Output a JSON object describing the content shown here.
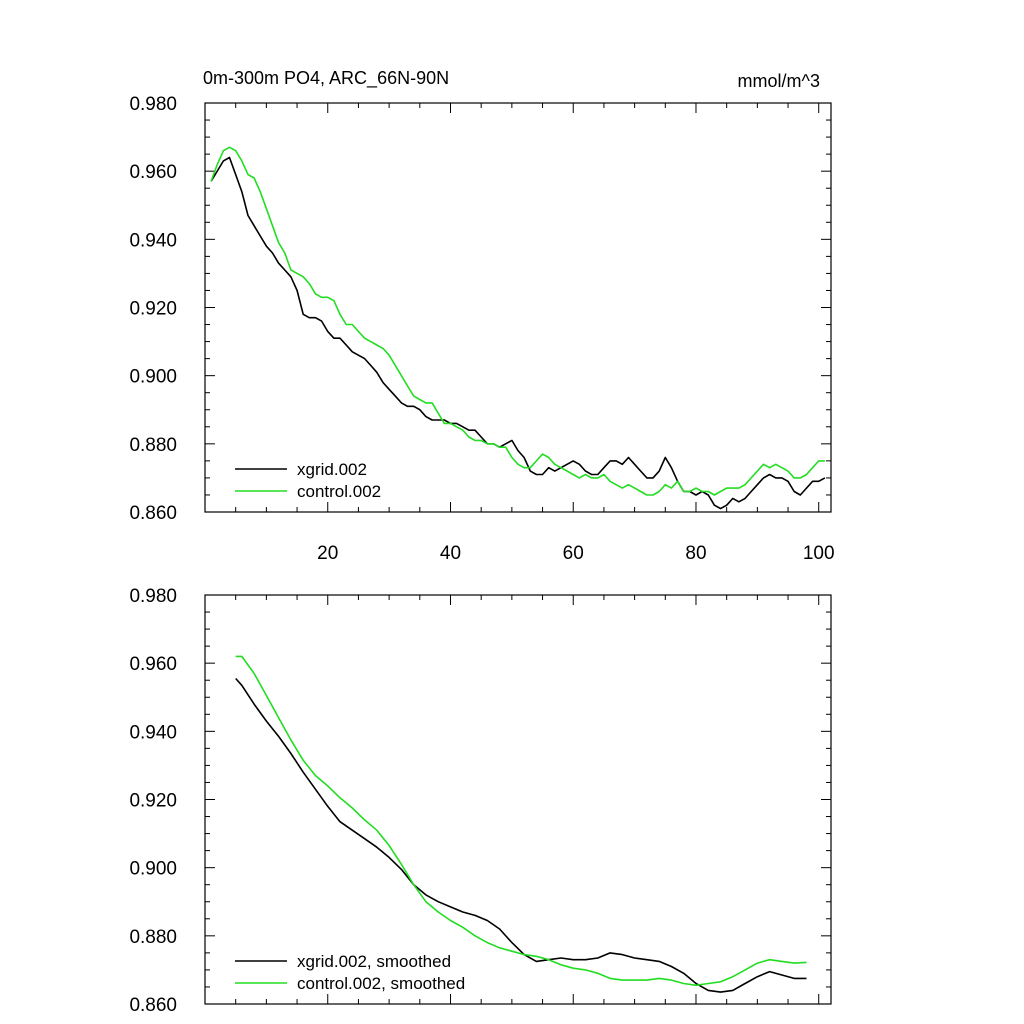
{
  "colors": {
    "xgrid": "#000000",
    "control": "#22dd22"
  },
  "chart_data": [
    {
      "type": "line",
      "title_left": "0m-300m PO4, ARC_66N-90N",
      "title_right": "mmol/m^3",
      "xlim": [
        0,
        102
      ],
      "ylim": [
        0.86,
        0.98
      ],
      "yticks": [
        0.86,
        0.88,
        0.9,
        0.92,
        0.94,
        0.96,
        0.98
      ],
      "ytick_labels": [
        "0.860",
        "0.880",
        "0.900",
        "0.920",
        "0.940",
        "0.960",
        "0.980"
      ],
      "xticks": [
        20,
        40,
        60,
        80,
        100
      ],
      "xtick_labels": [
        "20",
        "40",
        "60",
        "80",
        "100"
      ],
      "legend_position": "bottom-left",
      "series": [
        {
          "name": "xgrid.002",
          "color_key": "xgrid",
          "x": [
            1,
            3,
            4,
            5,
            6,
            7,
            8,
            9,
            10,
            11,
            12,
            13,
            14,
            15,
            16,
            17,
            18,
            19,
            20,
            21,
            22,
            23,
            24,
            25,
            26,
            27,
            28,
            29,
            30,
            31,
            32,
            33,
            34,
            35,
            36,
            37,
            38,
            39,
            40,
            41,
            42,
            43,
            44,
            45,
            46,
            47,
            48,
            49,
            50,
            51,
            52,
            53,
            54,
            55,
            56,
            57,
            58,
            59,
            60,
            61,
            62,
            63,
            64,
            65,
            66,
            67,
            68,
            69,
            70,
            71,
            72,
            73,
            74,
            75,
            76,
            77,
            78,
            79,
            80,
            81,
            82,
            83,
            84,
            85,
            86,
            87,
            88,
            89,
            90,
            91,
            92,
            93,
            94,
            95,
            96,
            97,
            98,
            99,
            100,
            101
          ],
          "y": [
            0.957,
            0.963,
            0.964,
            0.959,
            0.954,
            0.947,
            0.944,
            0.941,
            0.938,
            0.936,
            0.933,
            0.931,
            0.929,
            0.925,
            0.918,
            0.917,
            0.917,
            0.916,
            0.913,
            0.911,
            0.911,
            0.909,
            0.907,
            0.906,
            0.905,
            0.903,
            0.901,
            0.898,
            0.896,
            0.894,
            0.892,
            0.891,
            0.891,
            0.89,
            0.888,
            0.887,
            0.887,
            0.887,
            0.886,
            0.886,
            0.885,
            0.884,
            0.884,
            0.882,
            0.88,
            0.88,
            0.879,
            0.88,
            0.881,
            0.878,
            0.876,
            0.872,
            0.871,
            0.871,
            0.873,
            0.872,
            0.873,
            0.874,
            0.875,
            0.874,
            0.872,
            0.871,
            0.871,
            0.873,
            0.875,
            0.875,
            0.874,
            0.876,
            0.874,
            0.872,
            0.87,
            0.87,
            0.872,
            0.876,
            0.873,
            0.869,
            0.866,
            0.866,
            0.865,
            0.866,
            0.865,
            0.862,
            0.861,
            0.862,
            0.864,
            0.863,
            0.864,
            0.866,
            0.868,
            0.87,
            0.871,
            0.87,
            0.87,
            0.869,
            0.866,
            0.865,
            0.867,
            0.869,
            0.869,
            0.87
          ]
        },
        {
          "name": "control.002",
          "color_key": "control",
          "x": [
            1,
            2,
            3,
            4,
            5,
            6,
            7,
            8,
            9,
            10,
            11,
            12,
            13,
            14,
            15,
            16,
            17,
            18,
            19,
            20,
            21,
            22,
            23,
            24,
            25,
            26,
            27,
            28,
            29,
            30,
            31,
            32,
            33,
            34,
            35,
            36,
            37,
            38,
            39,
            40,
            41,
            42,
            43,
            44,
            45,
            46,
            47,
            48,
            49,
            50,
            51,
            52,
            53,
            54,
            55,
            56,
            57,
            58,
            59,
            60,
            61,
            62,
            63,
            64,
            65,
            66,
            67,
            68,
            69,
            70,
            71,
            72,
            73,
            74,
            75,
            76,
            77,
            78,
            79,
            80,
            81,
            82,
            83,
            84,
            85,
            86,
            87,
            88,
            89,
            90,
            91,
            92,
            93,
            94,
            95,
            96,
            97,
            98,
            99,
            100,
            101
          ],
          "y": [
            0.957,
            0.962,
            0.966,
            0.967,
            0.966,
            0.963,
            0.959,
            0.958,
            0.954,
            0.949,
            0.944,
            0.939,
            0.936,
            0.931,
            0.93,
            0.929,
            0.927,
            0.924,
            0.923,
            0.923,
            0.922,
            0.918,
            0.915,
            0.915,
            0.913,
            0.911,
            0.91,
            0.909,
            0.908,
            0.906,
            0.903,
            0.9,
            0.897,
            0.894,
            0.893,
            0.892,
            0.892,
            0.889,
            0.886,
            0.886,
            0.885,
            0.884,
            0.882,
            0.881,
            0.881,
            0.88,
            0.88,
            0.879,
            0.879,
            0.876,
            0.874,
            0.873,
            0.873,
            0.875,
            0.877,
            0.876,
            0.874,
            0.873,
            0.872,
            0.871,
            0.87,
            0.871,
            0.87,
            0.87,
            0.871,
            0.869,
            0.868,
            0.867,
            0.868,
            0.867,
            0.866,
            0.865,
            0.865,
            0.866,
            0.868,
            0.867,
            0.869,
            0.866,
            0.866,
            0.867,
            0.866,
            0.866,
            0.865,
            0.866,
            0.867,
            0.867,
            0.867,
            0.868,
            0.87,
            0.872,
            0.874,
            0.873,
            0.874,
            0.873,
            0.872,
            0.87,
            0.87,
            0.871,
            0.873,
            0.875,
            0.875
          ]
        }
      ]
    },
    {
      "type": "line",
      "xlim": [
        0,
        102
      ],
      "ylim": [
        0.86,
        0.98
      ],
      "yticks": [
        0.86,
        0.88,
        0.9,
        0.92,
        0.94,
        0.96,
        0.98
      ],
      "ytick_labels": [
        "0.860",
        "0.880",
        "0.900",
        "0.920",
        "0.940",
        "0.960",
        "0.980"
      ],
      "xticks": [
        20,
        40,
        60,
        80,
        100
      ],
      "legend_position": "bottom-left",
      "series": [
        {
          "name": "xgrid.002, smoothed",
          "color_key": "xgrid",
          "x": [
            5,
            6,
            8,
            10,
            12,
            14,
            16,
            18,
            20,
            22,
            24,
            26,
            28,
            30,
            32,
            34,
            36,
            38,
            40,
            42,
            44,
            46,
            48,
            50,
            52,
            54,
            56,
            58,
            60,
            62,
            64,
            66,
            68,
            70,
            72,
            74,
            76,
            78,
            80,
            82,
            84,
            86,
            88,
            90,
            92,
            94,
            96,
            98
          ],
          "y": [
            0.9555,
            0.9535,
            0.948,
            0.943,
            0.9385,
            0.9335,
            0.928,
            0.923,
            0.918,
            0.9135,
            0.911,
            0.9085,
            0.906,
            0.903,
            0.8995,
            0.895,
            0.892,
            0.89,
            0.8885,
            0.887,
            0.886,
            0.8845,
            0.882,
            0.878,
            0.8745,
            0.8725,
            0.873,
            0.8735,
            0.873,
            0.873,
            0.8735,
            0.875,
            0.8745,
            0.8735,
            0.873,
            0.8725,
            0.871,
            0.869,
            0.866,
            0.864,
            0.8635,
            0.864,
            0.866,
            0.868,
            0.8695,
            0.8685,
            0.8675,
            0.8675
          ]
        },
        {
          "name": "control.002, smoothed",
          "color_key": "control",
          "x": [
            5,
            6,
            8,
            10,
            12,
            14,
            16,
            18,
            20,
            22,
            24,
            26,
            28,
            30,
            32,
            34,
            36,
            38,
            40,
            42,
            44,
            46,
            48,
            50,
            52,
            54,
            56,
            58,
            60,
            62,
            64,
            66,
            68,
            70,
            72,
            74,
            76,
            78,
            80,
            82,
            84,
            86,
            88,
            90,
            92,
            94,
            96,
            98
          ],
          "y": [
            0.962,
            0.962,
            0.957,
            0.9505,
            0.944,
            0.9375,
            0.9315,
            0.927,
            0.924,
            0.9205,
            0.9175,
            0.914,
            0.911,
            0.9065,
            0.901,
            0.895,
            0.89,
            0.887,
            0.8845,
            0.8825,
            0.88,
            0.878,
            0.8765,
            0.8755,
            0.8745,
            0.874,
            0.873,
            0.8715,
            0.8705,
            0.87,
            0.869,
            0.8675,
            0.867,
            0.867,
            0.867,
            0.8675,
            0.867,
            0.866,
            0.8655,
            0.866,
            0.8665,
            0.868,
            0.87,
            0.872,
            0.873,
            0.8725,
            0.872,
            0.8722
          ]
        }
      ]
    }
  ]
}
